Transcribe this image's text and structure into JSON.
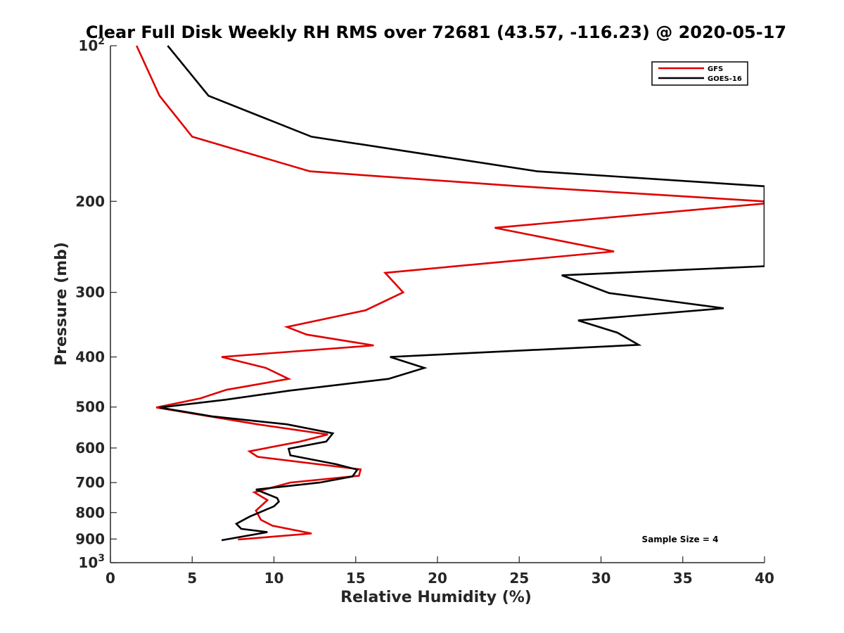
{
  "chart_data": {
    "type": "line",
    "title": "Clear Full Disk Weekly RH RMS over 72681 (43.57, -116.23) @ 2020-05-17",
    "xlabel": "Relative Humidity (%)",
    "ylabel": "Pressure (mb)",
    "xlim": [
      0,
      40
    ],
    "ylim": [
      1000,
      100
    ],
    "yscale": "log",
    "y_reversed": true,
    "grid": false,
    "legend_position": "top-right",
    "x_ticks": [
      0,
      5,
      10,
      15,
      20,
      25,
      30,
      35,
      40
    ],
    "y_ticks": [
      {
        "value": 100,
        "base": "10",
        "exp": "2"
      },
      {
        "value": 200,
        "label": "200"
      },
      {
        "value": 300,
        "label": "300"
      },
      {
        "value": 400,
        "label": "400"
      },
      {
        "value": 500,
        "label": "500"
      },
      {
        "value": 600,
        "label": "600"
      },
      {
        "value": 700,
        "label": "700"
      },
      {
        "value": 800,
        "label": "800"
      },
      {
        "value": 900,
        "label": "900"
      },
      {
        "value": 1000,
        "base": "10",
        "exp": "3"
      }
    ],
    "annotation": "Sample Size = 4",
    "series": [
      {
        "name": "GFS",
        "color": "#e00000",
        "points": [
          [
            1.6,
            100
          ],
          [
            3.0,
            125
          ],
          [
            5.0,
            150
          ],
          [
            12.2,
            175
          ],
          [
            25.0,
            187
          ],
          [
            40.0,
            200
          ],
          [
            40.0,
            202
          ],
          [
            23.5,
            225
          ],
          [
            30.8,
            250
          ],
          [
            16.8,
            275
          ],
          [
            17.9,
            300
          ],
          [
            15.6,
            325
          ],
          [
            10.8,
            350
          ],
          [
            12.0,
            362
          ],
          [
            16.1,
            380
          ],
          [
            6.8,
            400
          ],
          [
            9.5,
            420
          ],
          [
            10.9,
            441
          ],
          [
            7.1,
            463
          ],
          [
            5.5,
            481
          ],
          [
            2.8,
            501
          ],
          [
            9.0,
            540
          ],
          [
            13.3,
            565
          ],
          [
            11.6,
            583
          ],
          [
            8.5,
            609
          ],
          [
            9.0,
            624
          ],
          [
            15.3,
            660
          ],
          [
            15.2,
            679
          ],
          [
            11.0,
            700
          ],
          [
            8.8,
            731
          ],
          [
            9.6,
            757
          ],
          [
            8.9,
            793
          ],
          [
            9.2,
            826
          ],
          [
            9.9,
            848
          ],
          [
            12.3,
            878
          ],
          [
            7.8,
            902
          ]
        ]
      },
      {
        "name": "GOES-16",
        "color": "#000000",
        "points": [
          [
            3.5,
            100
          ],
          [
            6.0,
            125
          ],
          [
            12.3,
            150
          ],
          [
            26.1,
            175
          ],
          [
            40.0,
            187
          ],
          [
            40.0,
            267
          ],
          [
            27.6,
            278
          ],
          [
            30.5,
            301
          ],
          [
            37.5,
            322
          ],
          [
            28.6,
            340
          ],
          [
            31.0,
            359
          ],
          [
            32.3,
            379
          ],
          [
            17.1,
            400
          ],
          [
            19.2,
            420
          ],
          [
            17.0,
            441
          ],
          [
            10.9,
            465
          ],
          [
            7.0,
            484
          ],
          [
            3.0,
            501
          ],
          [
            6.2,
            521
          ],
          [
            10.8,
            540
          ],
          [
            13.6,
            562
          ],
          [
            13.2,
            583
          ],
          [
            10.9,
            602
          ],
          [
            11.0,
            620
          ],
          [
            13.8,
            645
          ],
          [
            15.1,
            661
          ],
          [
            14.8,
            681
          ],
          [
            12.8,
            700
          ],
          [
            8.9,
            722
          ],
          [
            10.2,
            750
          ],
          [
            10.3,
            762
          ],
          [
            10.0,
            778
          ],
          [
            8.5,
            815
          ],
          [
            7.7,
            841
          ],
          [
            8.0,
            860
          ],
          [
            9.6,
            873
          ],
          [
            6.8,
            905
          ]
        ]
      }
    ]
  }
}
